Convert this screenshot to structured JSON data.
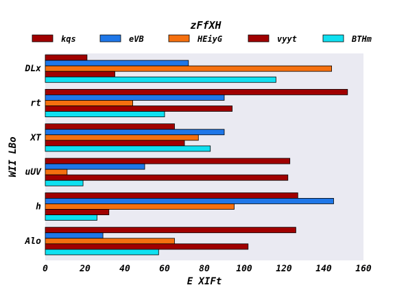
{
  "chart_data": {
    "type": "bar",
    "orientation": "horizontal",
    "title": "zFfXH",
    "xlabel": "E  XIFt",
    "ylabel": "WII LBo",
    "xlim": [
      0,
      160
    ],
    "x_ticks": [
      0,
      20,
      40,
      60,
      80,
      100,
      120,
      140,
      160
    ],
    "categories": [
      "DLx",
      "rt",
      "XT",
      "uUV",
      "h",
      "Alo"
    ],
    "series": [
      {
        "name": "kqs",
        "color": "#a00000",
        "values": [
          21,
          152,
          65,
          123,
          127,
          126
        ]
      },
      {
        "name": "eVB",
        "color": "#1f77e8",
        "values": [
          72,
          90,
          90,
          50,
          145,
          29
        ]
      },
      {
        "name": "HEiyG",
        "color": "#f5700f",
        "values": [
          144,
          44,
          77,
          11,
          95,
          65
        ]
      },
      {
        "name": "vyyt",
        "color": "#a00000",
        "values": [
          35,
          94,
          70,
          122,
          32,
          102
        ]
      },
      {
        "name": "BTHm",
        "color": "#0fe0f0",
        "values": [
          116,
          60,
          83,
          19,
          26,
          57
        ]
      }
    ],
    "grid": false,
    "legend_position": "top",
    "plot_background": "#eaeaf2"
  }
}
